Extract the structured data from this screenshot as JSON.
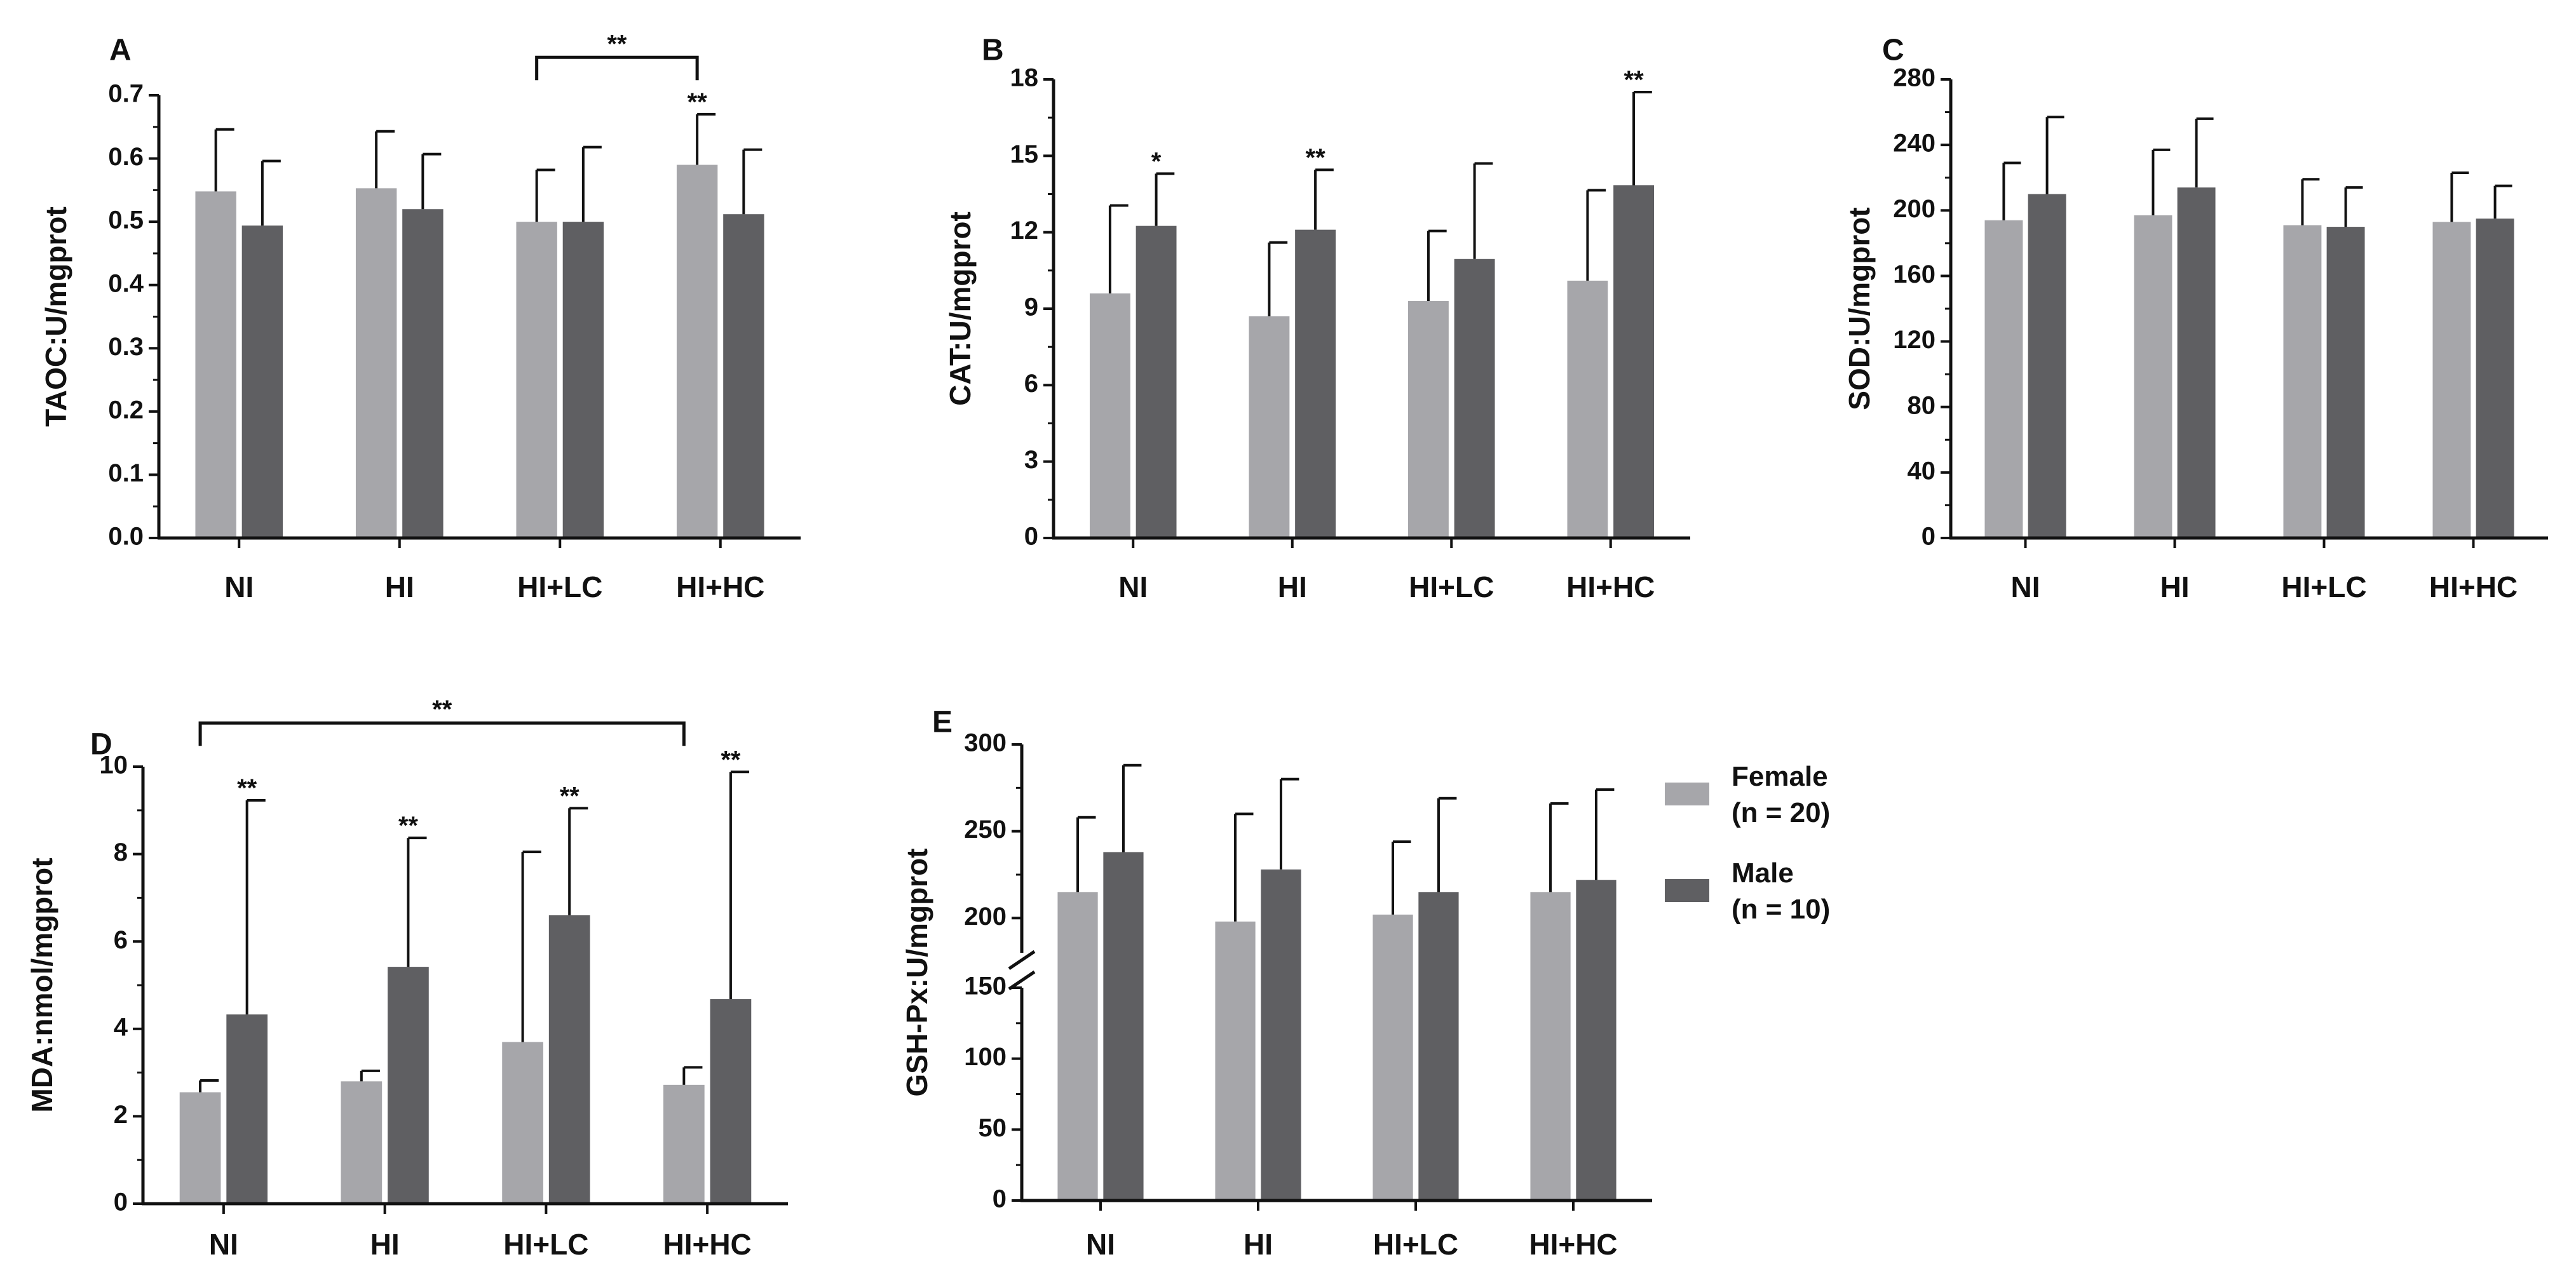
{
  "figure": {
    "legend": [
      {
        "line1": "Female",
        "line2": "(n = 20)",
        "color": "#a6a6aa"
      },
      {
        "line1": "Male",
        "line2": "(n = 10)",
        "color": "#5f5f62"
      }
    ]
  },
  "chart_data": [
    {
      "panel": "A",
      "type": "bar",
      "ylabel": "TAOC:U/mgprot",
      "categories": [
        "NI",
        "HI",
        "HI+LC",
        "HI+HC"
      ],
      "ylim": [
        0,
        0.7
      ],
      "yticks": [
        0,
        0.1,
        0.2,
        0.3,
        0.4,
        0.5,
        0.6,
        0.7
      ],
      "ytick_labels": [
        "0.0",
        "0.1",
        "0.2",
        "0.3",
        "0.4",
        "0.5",
        "0.6",
        "0.7"
      ],
      "series": [
        {
          "name": "Female (n = 20)",
          "values": [
            0.548,
            0.553,
            0.5,
            0.59
          ],
          "errors": [
            0.098,
            0.09,
            0.082,
            0.08
          ],
          "significance": [
            "",
            "",
            "",
            "**"
          ]
        },
        {
          "name": "Male (n = 10)",
          "values": [
            0.494,
            0.52,
            0.5,
            0.512
          ],
          "errors": [
            0.102,
            0.087,
            0.118,
            0.102
          ],
          "significance": [
            "",
            "",
            "",
            ""
          ]
        }
      ],
      "brackets": [
        {
          "from": 2,
          "to": 3,
          "value": 0.76,
          "label": "**"
        }
      ]
    },
    {
      "panel": "B",
      "type": "bar",
      "ylabel": "CAT:U/mgprot",
      "categories": [
        "NI",
        "HI",
        "HI+LC",
        "HI+HC"
      ],
      "ylim": [
        0,
        18
      ],
      "yticks": [
        0,
        3,
        6,
        9,
        12,
        15,
        18
      ],
      "ytick_labels": [
        "0",
        "3",
        "6",
        "9",
        "12",
        "15",
        "18"
      ],
      "series": [
        {
          "name": "Female (n = 20)",
          "values": [
            9.6,
            8.7,
            9.3,
            10.1
          ],
          "errors": [
            3.45,
            2.9,
            2.75,
            3.55
          ],
          "significance": [
            "",
            "",
            "",
            ""
          ]
        },
        {
          "name": "Male (n = 10)",
          "values": [
            12.25,
            12.1,
            10.95,
            13.85
          ],
          "errors": [
            2.05,
            2.35,
            3.75,
            3.65
          ],
          "significance": [
            "*",
            "**",
            "",
            "**"
          ]
        }
      ],
      "brackets": []
    },
    {
      "panel": "C",
      "type": "bar",
      "ylabel": "SOD:U/mgprot",
      "categories": [
        "NI",
        "HI",
        "HI+LC",
        "HI+HC"
      ],
      "ylim": [
        0,
        280
      ],
      "yticks": [
        0,
        40,
        80,
        120,
        160,
        200,
        240,
        280
      ],
      "ytick_labels": [
        "0",
        "40",
        "80",
        "120",
        "160",
        "200",
        "240",
        "280"
      ],
      "series": [
        {
          "name": "Female (n = 20)",
          "values": [
            194,
            197,
            191,
            193
          ],
          "errors": [
            35,
            40,
            28,
            30
          ],
          "significance": [
            "",
            "",
            "",
            ""
          ]
        },
        {
          "name": "Male (n = 10)",
          "values": [
            210,
            214,
            190,
            195
          ],
          "errors": [
            47,
            42,
            24,
            20
          ],
          "significance": [
            "",
            "",
            "",
            ""
          ]
        }
      ],
      "brackets": []
    },
    {
      "panel": "D",
      "type": "bar",
      "ylabel": "MDA:nmol/mgprot",
      "categories": [
        "NI",
        "HI",
        "HI+LC",
        "HI+HC"
      ],
      "ylim": [
        0,
        10
      ],
      "yticks": [
        0,
        2,
        4,
        6,
        8,
        10
      ],
      "ytick_labels": [
        "0",
        "2",
        "4",
        "6",
        "8",
        "10"
      ],
      "series": [
        {
          "name": "Female (n = 20)",
          "values": [
            2.55,
            2.8,
            3.7,
            2.72
          ],
          "errors": [
            0.27,
            0.24,
            4.35,
            0.4
          ],
          "significance": [
            "",
            "",
            "",
            ""
          ]
        },
        {
          "name": "Male (n = 10)",
          "values": [
            4.33,
            5.42,
            6.6,
            4.68
          ],
          "errors": [
            4.9,
            2.95,
            2.45,
            5.2
          ],
          "significance": [
            "**",
            "**",
            "**",
            "**"
          ]
        }
      ],
      "brackets": [
        {
          "from": 0,
          "to": 3,
          "value": 11.0,
          "label": "**"
        }
      ]
    },
    {
      "panel": "E",
      "type": "bar",
      "ylabel": "GSH-Px:U/mgprot",
      "categories": [
        "NI",
        "HI",
        "HI+LC",
        "HI+HC"
      ],
      "ylim": [
        0,
        300
      ],
      "axis_break": [
        150,
        180
      ],
      "yticks": [
        0,
        50,
        100,
        150,
        200,
        250,
        300
      ],
      "ytick_labels": [
        "0",
        "50",
        "100",
        "150",
        "200",
        "250",
        "300"
      ],
      "series": [
        {
          "name": "Female (n = 20)",
          "values": [
            215,
            198,
            202,
            215
          ],
          "errors": [
            43,
            62,
            42,
            51
          ],
          "significance": [
            "",
            "",
            "",
            ""
          ]
        },
        {
          "name": "Male (n = 10)",
          "values": [
            238,
            228,
            215,
            222
          ],
          "errors": [
            50,
            52,
            54,
            52
          ],
          "significance": [
            "",
            "",
            "",
            ""
          ]
        }
      ],
      "brackets": []
    }
  ]
}
